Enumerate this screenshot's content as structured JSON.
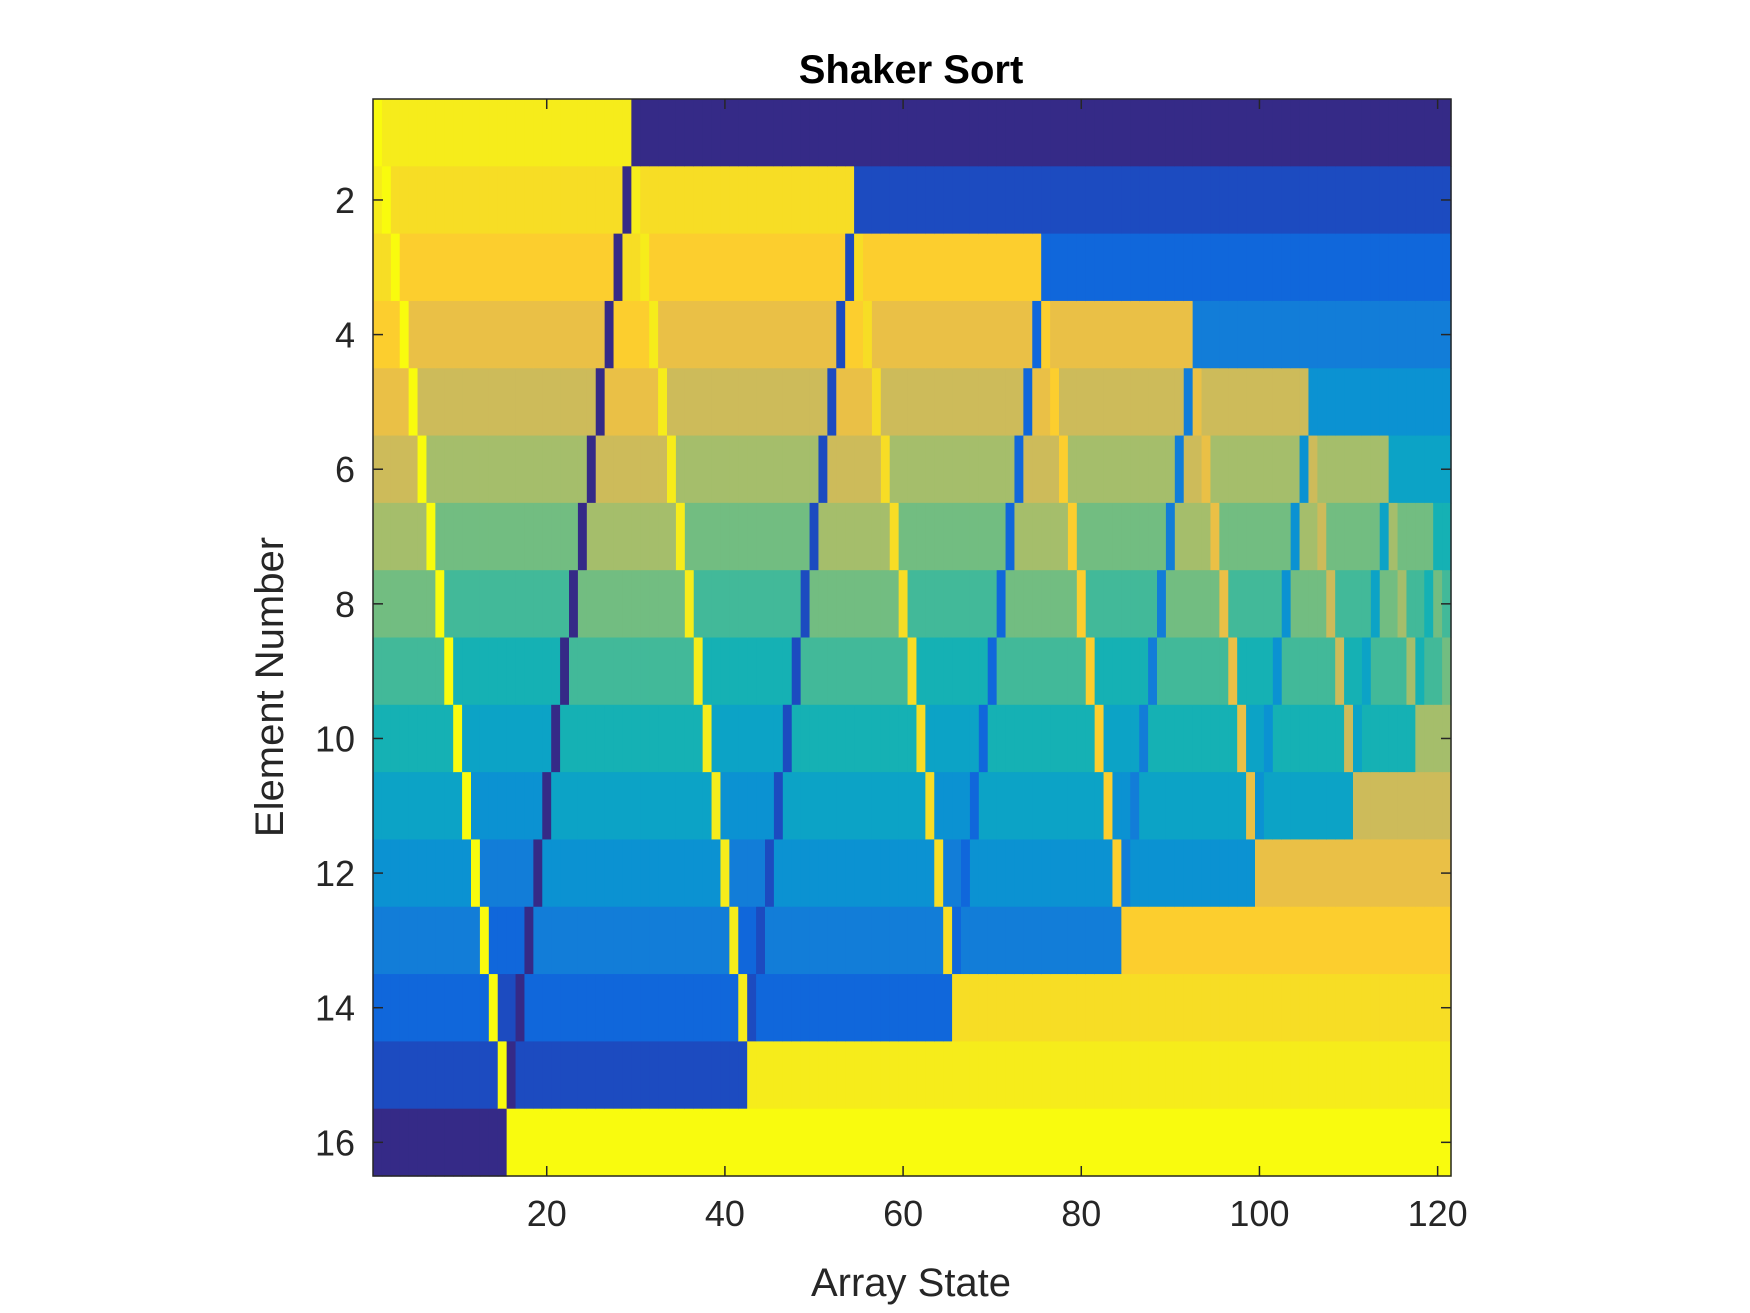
{
  "chart_data": {
    "type": "heatmap",
    "title": "Shaker Sort",
    "xlabel": "Array State",
    "ylabel": "Element Number",
    "xlim": [
      0.5,
      121.5
    ],
    "ylim": [
      0.5,
      16.5
    ],
    "y_reversed": true,
    "xticks": [
      20,
      40,
      60,
      80,
      100,
      120
    ],
    "yticks": [
      2,
      4,
      6,
      8,
      10,
      12,
      14,
      16
    ],
    "grid": false,
    "colormap": "parula",
    "color_range": [
      1,
      16
    ],
    "description": "Each column is the array state after one swap; each row is an element position; color encodes the element value (1 = dark blue, 16 = yellow).",
    "initial_state": [
      16,
      15,
      14,
      13,
      12,
      11,
      10,
      9,
      8,
      7,
      6,
      5,
      4,
      3,
      2,
      1
    ],
    "final_state": [
      1,
      2,
      3,
      4,
      5,
      6,
      7,
      8,
      9,
      10,
      11,
      12,
      13,
      14,
      15,
      16
    ],
    "num_states": 121
  }
}
